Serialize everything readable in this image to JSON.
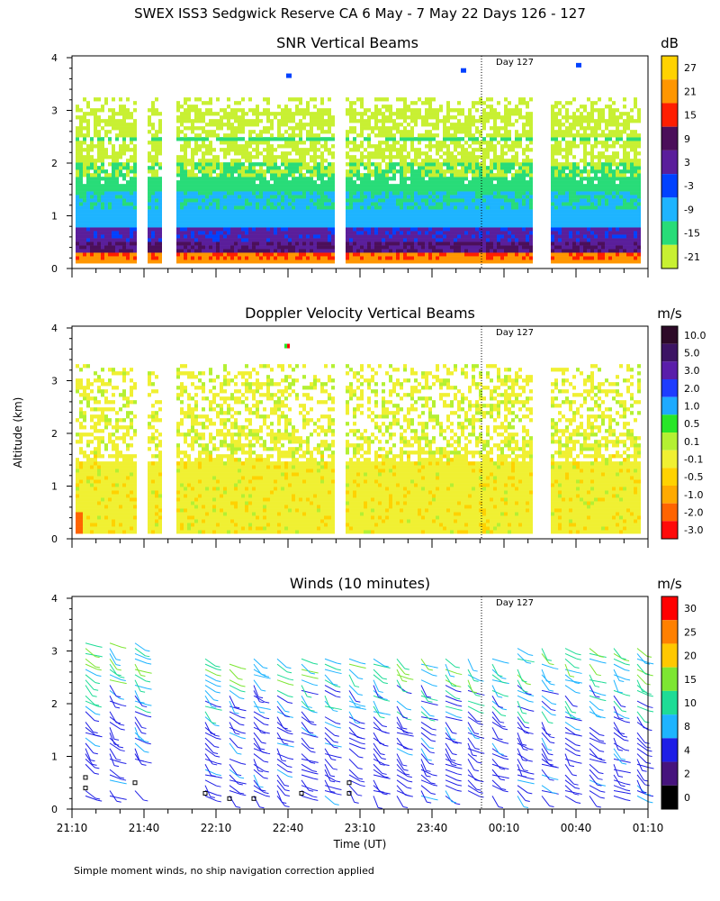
{
  "title": "SWEX ISS3 Sedgwick Reserve CA   6 May -  7 May 22 Days 126 - 127",
  "footnote": "Simple moment winds, no ship navigation correction applied",
  "y_axis_label": "Altitude (km)",
  "x_axis_label": "Time (UT)",
  "chart_data": [
    {
      "type": "heatmap",
      "title": "SNR Vertical Beams",
      "day_marker": {
        "label": "Day 127",
        "time": "00:00"
      },
      "ylabel": "Altitude (km)",
      "ylim": [
        0,
        4
      ],
      "yticks": [
        "0",
        "1",
        "2",
        "3",
        "4"
      ],
      "xlim": [
        "21:10",
        "01:10"
      ],
      "colorbar": {
        "unit": "dB",
        "labels": [
          "27",
          "21",
          "15",
          "9",
          "3",
          "-3",
          "-9",
          "-15",
          "-21"
        ],
        "colors": [
          "#ffd200",
          "#ff9600",
          "#ff1e00",
          "#4b0f5a",
          "#5a1e9b",
          "#0041ff",
          "#1eb4ff",
          "#28dc78",
          "#c8f032"
        ]
      }
    },
    {
      "type": "heatmap",
      "title": "Doppler Velocity Vertical Beams",
      "day_marker": {
        "label": "Day 127",
        "time": "00:00"
      },
      "ylabel": "Altitude (km)",
      "ylim": [
        0,
        4
      ],
      "yticks": [
        "0",
        "1",
        "2",
        "3",
        "4"
      ],
      "xlim": [
        "21:10",
        "01:10"
      ],
      "colorbar": {
        "unit": "m/s",
        "labels": [
          "10.0",
          "5.0",
          "3.0",
          "2.0",
          "1.0",
          "0.5",
          "0.1",
          "-0.1",
          "-0.5",
          "-1.0",
          "-2.0",
          "-3.0"
        ],
        "colors": [
          "#2d0a28",
          "#3c1464",
          "#5a1eaa",
          "#1e3cff",
          "#1eaaff",
          "#28e628",
          "#b4f032",
          "#f0f032",
          "#ffd200",
          "#ffaa00",
          "#ff6400",
          "#ff0a0a"
        ]
      }
    },
    {
      "type": "scatter",
      "title": "Winds (10 minutes)",
      "day_marker": {
        "label": "Day 127",
        "time": "00:00"
      },
      "ylabel": "Altitude (km)",
      "ylim": [
        0,
        4
      ],
      "yticks": [
        "0",
        "1",
        "2",
        "3",
        "4"
      ],
      "xlabel": "Time (UT)",
      "xticks": [
        "21:10",
        "21:40",
        "22:10",
        "22:40",
        "23:10",
        "23:40",
        "00:10",
        "00:40",
        "01:10"
      ],
      "colorbar": {
        "unit": "m/s",
        "labels": [
          "30",
          "25",
          "20",
          "15",
          "10",
          "8",
          "4",
          "2",
          "0"
        ],
        "colors": [
          "#ff0000",
          "#ff8000",
          "#ffc800",
          "#7de632",
          "#1edc96",
          "#1eb4ff",
          "#1e1ee6",
          "#46147d",
          "#000000"
        ]
      }
    }
  ]
}
